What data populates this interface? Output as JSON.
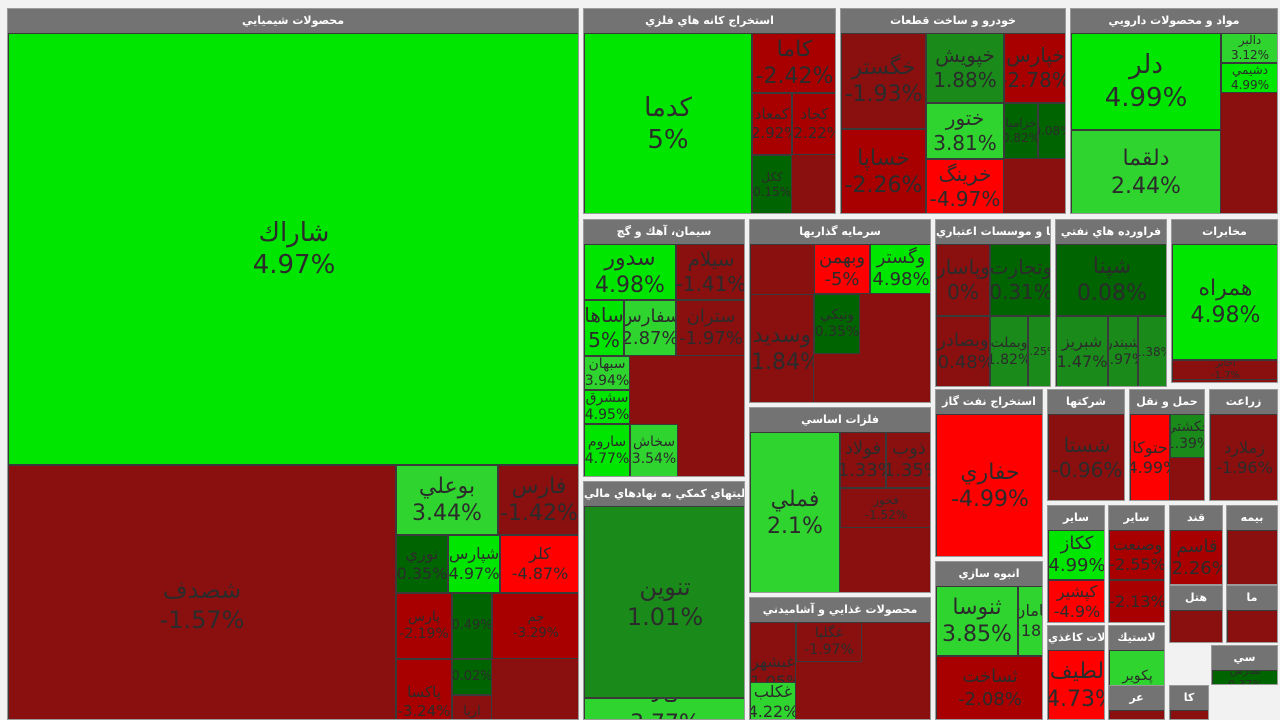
{
  "colors": {
    "strong_pos": "#00e600",
    "pos": "#2fd42f",
    "mild_pos": "#1a8a1a",
    "dark_pos": "#006400",
    "flat": "#8a1010",
    "neg": "#a80000",
    "strong_neg": "#ff0000",
    "header": "#737373"
  },
  "sectors": [
    {
      "title": "محصولات شيميايي",
      "tiles": [
        {
          "name": "شاراك",
          "pct": "4.97%"
        },
        {
          "name": "شصدف",
          "pct": "-1.57%"
        },
        {
          "name": "بوعلي",
          "pct": "3.44%"
        },
        {
          "name": "فارس",
          "pct": "-1.42%"
        },
        {
          "name": "نوري",
          "pct": "0.35%"
        },
        {
          "name": "شپارس",
          "pct": "4.97%"
        },
        {
          "name": "كلر",
          "pct": "-4.87%"
        },
        {
          "name": "پارس",
          "pct": "-2.19%"
        },
        {
          "name": "",
          "pct": "0.49%"
        },
        {
          "name": "جم",
          "pct": "-3.29%"
        },
        {
          "name": "پاكسا",
          "pct": "-3.24%"
        },
        {
          "name": "",
          "pct": "0.02%"
        },
        {
          "name": "اريا",
          "pct": "-0.35%"
        }
      ]
    },
    {
      "title": "استخراج كانه هاي فلزي",
      "tiles": [
        {
          "name": "كدما",
          "pct": "5%"
        },
        {
          "name": "كاما",
          "pct": "-2.42%"
        },
        {
          "name": "كمعاد",
          "pct": "-2.92%"
        },
        {
          "name": "كجاد",
          "pct": "-2.22%"
        },
        {
          "name": "ككل",
          "pct": "0.15%"
        }
      ]
    },
    {
      "title": "خودرو و ساخت قطعات",
      "tiles": [
        {
          "name": "خگستر",
          "pct": "-1.93%"
        },
        {
          "name": "خپويش",
          "pct": "1.88%"
        },
        {
          "name": "خپارس",
          "pct": "-2.78%"
        },
        {
          "name": "ختور",
          "pct": "3.81%"
        },
        {
          "name": "خساپا",
          "pct": "-2.26%"
        },
        {
          "name": "خرينگ",
          "pct": "-4.97%"
        },
        {
          "name": "خزاميا",
          "pct": "0.82%"
        },
        {
          "name": "",
          "pct": "0.08%"
        }
      ]
    },
    {
      "title": "مواد و محصولات دارويي",
      "tiles": [
        {
          "name": "دلر",
          "pct": "4.99%"
        },
        {
          "name": "بركت",
          "pct": "0.66%"
        },
        {
          "name": "دلقما",
          "pct": "2.44%"
        },
        {
          "name": "دالبر",
          "pct": "3.12%"
        },
        {
          "name": "دشيمي",
          "pct": "4.99%"
        }
      ]
    },
    {
      "title": "سيمان، آهك و گچ",
      "tiles": [
        {
          "name": "سدور",
          "pct": "4.98%"
        },
        {
          "name": "سيلام",
          "pct": "-1.41%"
        },
        {
          "name": "ساها",
          "pct": "5%"
        },
        {
          "name": "سفارس",
          "pct": "2.87%"
        },
        {
          "name": "ستران",
          "pct": "-1.97%"
        },
        {
          "name": "سبهان",
          "pct": "3.94%"
        },
        {
          "name": "سشرق",
          "pct": "4.95%"
        },
        {
          "name": "ساروم",
          "pct": "4.77%"
        },
        {
          "name": "سخاش",
          "pct": "3.54%"
        }
      ]
    },
    {
      "title": "سرمايه گذاريها",
      "tiles": [
        {
          "name": "وبهمن",
          "pct": "-5%"
        },
        {
          "name": "وگستر",
          "pct": "4.98%"
        },
        {
          "name": "وسديد",
          "pct": "-1.84%"
        },
        {
          "name": "ونيكي",
          "pct": "0.35%"
        }
      ]
    },
    {
      "title": "بانكها و موسسات اعتباري",
      "tiles": [
        {
          "name": "وپاسار",
          "pct": "0%"
        },
        {
          "name": "وتجارت",
          "pct": "0.31%"
        },
        {
          "name": "وبصادر",
          "pct": "-0.48%"
        },
        {
          "name": "وبملت",
          "pct": "1.82%"
        },
        {
          "name": "",
          "pct": "1.25%"
        }
      ]
    },
    {
      "title": "فراورده هاي نفتي",
      "tiles": [
        {
          "name": "شپنا",
          "pct": "0.08%"
        },
        {
          "name": "شبريز",
          "pct": "1.47%"
        },
        {
          "name": "شبندر",
          "pct": "0.97%"
        },
        {
          "name": "",
          "pct": "1.38%"
        }
      ]
    },
    {
      "title": "مخابرات",
      "tiles": [
        {
          "name": "همراه",
          "pct": "4.98%"
        },
        {
          "name": "اخابر",
          "pct": "-1.7%"
        }
      ]
    },
    {
      "title": "فلزات اساسي",
      "tiles": [
        {
          "name": "فملي",
          "pct": "2.1%"
        },
        {
          "name": "فولاد",
          "pct": "-1.33%"
        },
        {
          "name": "ذوب",
          "pct": "-1.35%"
        },
        {
          "name": "فخوز",
          "pct": "-1.52%"
        }
      ]
    },
    {
      "title": "استخراج نفت گاز",
      "tiles": [
        {
          "name": "حفاري",
          "pct": "-4.99%"
        }
      ]
    },
    {
      "title": "شركتها",
      "tiles": [
        {
          "name": "شستا",
          "pct": "-0.96%"
        }
      ]
    },
    {
      "title": "حمل و نقل",
      "tiles": [
        {
          "name": "حتوكا",
          "pct": "-4.99%"
        },
        {
          "name": "حكشتي",
          "pct": "1.39%"
        }
      ]
    },
    {
      "title": "زراعت",
      "tiles": [
        {
          "name": "زملارد",
          "pct": "-1.96%"
        }
      ]
    },
    {
      "title": "فعاليتهاي كمكي به نهادهاي مالي",
      "tiles": [
        {
          "name": "تنوين",
          "pct": "1.01%"
        },
        {
          "name": "كالا",
          "pct": "3.77%"
        }
      ]
    },
    {
      "title": "محصولات غذايي و آشاميدني",
      "tiles": [
        {
          "name": "غبشهر",
          "pct": "-1.05%"
        },
        {
          "name": "غگلپا",
          "pct": "-1.97%"
        },
        {
          "name": "غكلب",
          "pct": "4.22%"
        }
      ]
    },
    {
      "title": "انبوه سازي",
      "tiles": [
        {
          "name": "ثنوسا",
          "pct": "3.85%"
        },
        {
          "name": "ثامان",
          "pct": "2.18%"
        },
        {
          "name": "ثساخت",
          "pct": "-2.08%"
        }
      ]
    },
    {
      "title": "ساير",
      "tiles": [
        {
          "name": "ككاز",
          "pct": "4.99%"
        },
        {
          "name": "كپشير",
          "pct": "-4.9%"
        }
      ]
    },
    {
      "title": "ساير",
      "tiles": [
        {
          "name": "وصنعت",
          "pct": "-2.55%"
        },
        {
          "name": "",
          "pct": "-2.13%"
        }
      ]
    },
    {
      "title": "قند",
      "tiles": [
        {
          "name": "قاسم",
          "pct": "-2.26%"
        }
      ]
    },
    {
      "title": "بيمه",
      "tiles": [
        {
          "name": "",
          "pct": ""
        }
      ]
    },
    {
      "title": "محصولات كاغذي",
      "tiles": [
        {
          "name": "لطيف",
          "pct": "-4.73%"
        }
      ]
    },
    {
      "title": "لاستيك",
      "tiles": [
        {
          "name": "پكوير",
          "pct": "4.26%"
        }
      ]
    },
    {
      "title": "هتل",
      "tiles": [
        {
          "name": "",
          "pct": ""
        }
      ]
    },
    {
      "title": "ما",
      "tiles": [
        {
          "name": "",
          "pct": ""
        }
      ]
    },
    {
      "title": "سي",
      "tiles": [
        {
          "name": "تمارس",
          "pct": "0.37%"
        }
      ]
    },
    {
      "title": "عر",
      "tiles": [
        {
          "name": "",
          "pct": ""
        }
      ]
    },
    {
      "title": "كا",
      "tiles": [
        {
          "name": "",
          "pct": ""
        }
      ]
    }
  ]
}
